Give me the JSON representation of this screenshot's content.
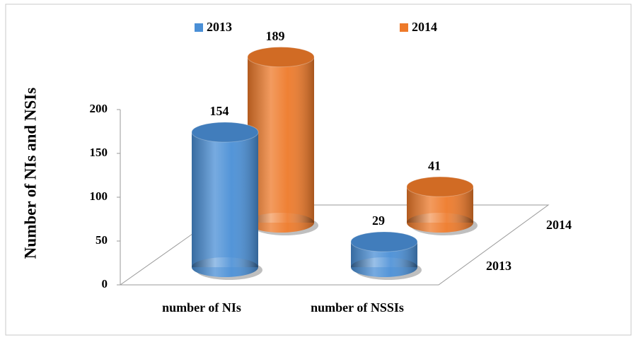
{
  "chart_data": {
    "type": "bar",
    "y_label": "Number of NIs and NSIs",
    "categories": [
      "number of NIs",
      "number of NSSIs"
    ],
    "series": [
      {
        "name": "2013",
        "color": "#4a8fd6",
        "values": [
          154,
          29
        ]
      },
      {
        "name": "2014",
        "color": "#ee7a2a",
        "values": [
          189,
          41
        ]
      }
    ],
    "ylim": [
      0,
      200
    ],
    "yticks": [
      0,
      50,
      100,
      150,
      200
    ]
  }
}
